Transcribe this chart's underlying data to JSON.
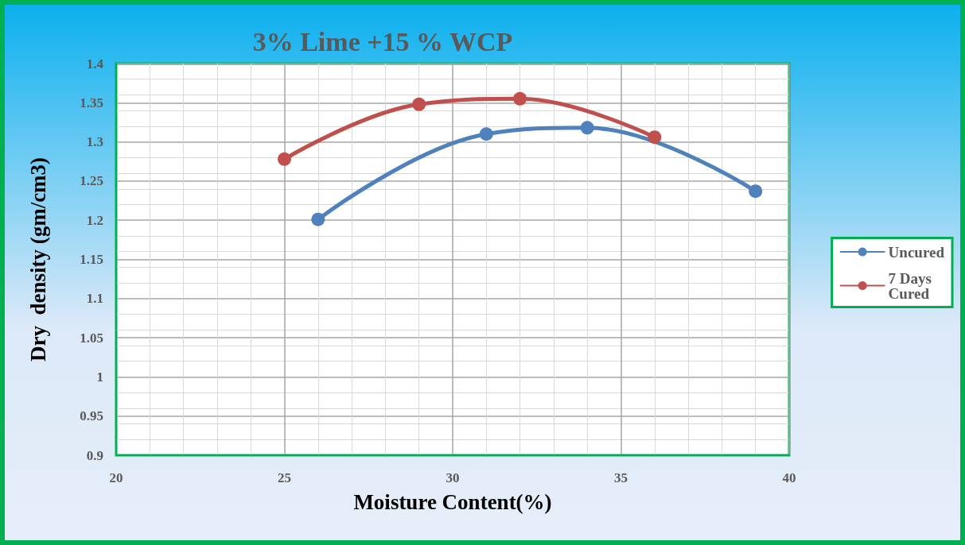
{
  "chart_data": {
    "type": "line",
    "title": "3% Lime +15 % WCP",
    "xlabel": "Moisture Content(%)",
    "ylabel": "Dry  density (gm/cm3)",
    "xlim": [
      20,
      40
    ],
    "xticks": [
      20,
      25,
      30,
      35,
      40
    ],
    "ylim": [
      0.9,
      1.4
    ],
    "yticks": [
      0.9,
      0.95,
      1,
      1.05,
      1.1,
      1.15,
      1.2,
      1.25,
      1.3,
      1.35,
      1.4
    ],
    "grid": true,
    "legend": "right",
    "marker": "circle",
    "line_style": "solid",
    "series": [
      {
        "name": "Uncured",
        "color": "#4f81bd",
        "x": [
          26,
          31,
          34,
          39
        ],
        "values": [
          1.201,
          1.31,
          1.318,
          1.237
        ]
      },
      {
        "name": "7 Days Cured",
        "color": "#c0504d",
        "x": [
          25,
          29,
          32,
          36
        ],
        "values": [
          1.278,
          1.348,
          1.355,
          1.306
        ]
      }
    ]
  }
}
